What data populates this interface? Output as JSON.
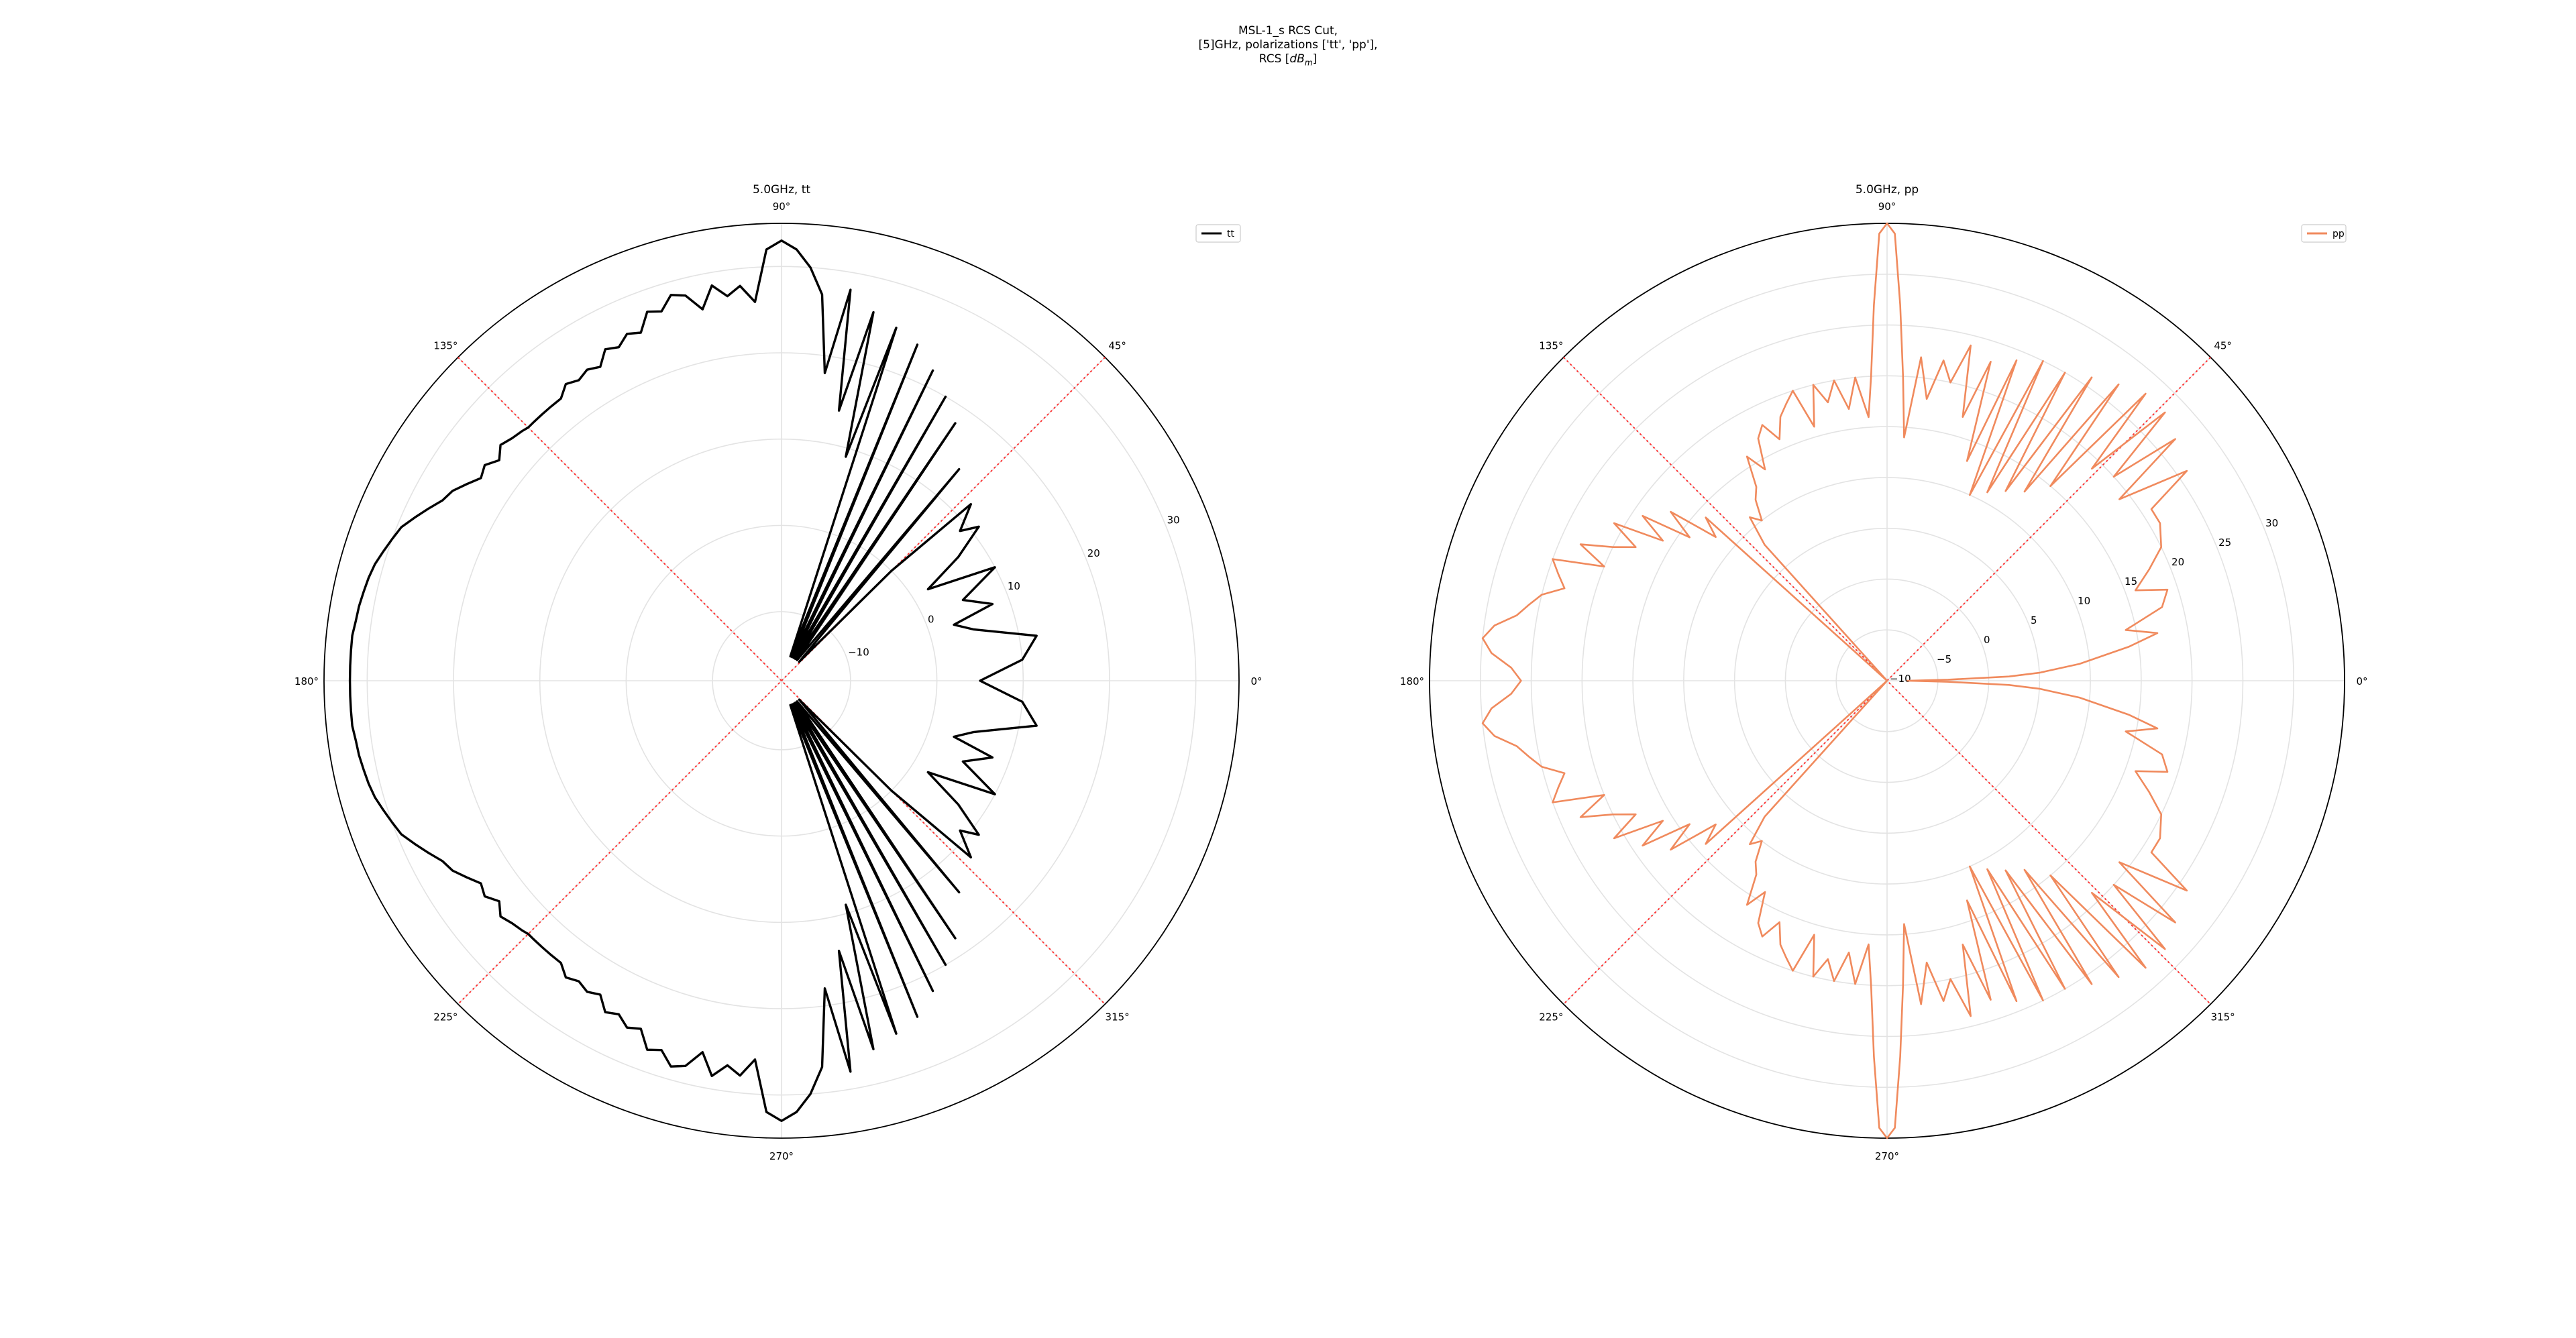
{
  "figure": {
    "title_line1": "MSL-1_s RCS Cut,",
    "title_line2": "[5]GHz, polarizations ['tt', 'pp'],",
    "title_line3": "RCS [dBm]",
    "title_line3_main": "RCS [",
    "title_line3_d": "dB",
    "title_line3_sub": "m",
    "title_line3_end": "]"
  },
  "chart_data": [
    {
      "type": "polar-line",
      "title": "5.0GHz, tt",
      "angle_ticks": [
        "0°",
        "45°",
        "90°",
        "135°",
        "180°",
        "225°",
        "270°",
        "315°"
      ],
      "radial_tick_labels": [
        "−10",
        "0",
        "10",
        "20",
        "30"
      ],
      "radial_ticks": [
        -10,
        0,
        10,
        20,
        30
      ],
      "rlim": [
        -18,
        35
      ],
      "rlabel_angle_deg": 22.5,
      "grid": true,
      "legend": "top-right",
      "cut_lines_deg": [
        45,
        135
      ],
      "series": [
        {
          "name": "tt",
          "color": "#000000",
          "angle_deg": [
            0,
            5,
            10,
            15,
            18,
            20,
            24,
            28,
            32,
            35,
            38,
            40,
            43,
            45,
            47,
            50,
            53,
            56,
            58,
            60,
            62,
            64,
            66,
            68,
            70,
            72,
            74,
            76,
            78,
            80,
            82,
            84,
            86,
            88,
            90,
            92,
            94,
            96,
            98,
            100,
            102,
            104,
            106,
            108,
            110,
            112,
            114,
            116,
            118,
            120,
            122,
            124,
            126,
            128,
            130,
            132,
            134,
            135,
            136,
            138,
            140,
            142,
            144,
            146,
            148,
            150,
            152,
            154,
            156,
            158,
            160,
            162,
            164,
            166,
            168,
            170,
            172,
            174,
            176,
            178,
            180
          ],
          "values": [
            5,
            10,
            12,
            5,
            3,
            8,
            5,
            10,
            2,
            7,
            11,
            9,
            12,
            0,
            -15,
            14,
            -15,
            18,
            -15,
            20,
            -15,
            22,
            -15,
            24,
            -15,
            25,
            9,
            26,
            14,
            28,
            18,
            27,
            30,
            32,
            33,
            32,
            26,
            28,
            27,
            28.5,
            26,
            28,
            28.5,
            27,
            27.5,
            25.5,
            26,
            25,
            25.5,
            24,
            24.5,
            24,
            24.5,
            23.5,
            23.5,
            23.5,
            23.5,
            23.5,
            23.7,
            24,
            24.5,
            23.5,
            24.5,
            24,
            25,
            26,
            26.5,
            27.5,
            28.5,
            29.5,
            30,
            30.5,
            31,
            31.3,
            31.5,
            31.7,
            31.8,
            32,
            32,
            32,
            32
          ]
        }
      ]
    },
    {
      "type": "polar-line",
      "title": "5.0GHz, pp",
      "angle_ticks": [
        "0°",
        "45°",
        "90°",
        "135°",
        "180°",
        "225°",
        "270°",
        "315°"
      ],
      "radial_tick_labels": [
        "−10",
        "−5",
        "0",
        "5",
        "10",
        "15",
        "20",
        "25",
        "30"
      ],
      "radial_ticks": [
        -10,
        -5,
        0,
        5,
        10,
        15,
        20,
        25,
        30
      ],
      "rlim": [
        -10,
        35
      ],
      "rlabel_angle_deg": 22.5,
      "grid": true,
      "legend": "top-right",
      "cut_lines_deg": [
        45,
        135
      ],
      "series": [
        {
          "name": "pp",
          "color": "#f08a5d",
          "angle_deg": [
            0,
            1,
            2,
            3,
            5,
            8,
            10,
            12,
            15,
            18,
            20,
            23,
            26,
            30,
            33,
            35,
            38,
            40,
            42,
            44,
            46,
            48,
            50,
            52,
            54,
            56,
            58,
            60,
            62,
            64,
            66,
            68,
            70,
            72,
            74,
            76,
            78,
            80,
            82,
            84,
            86,
            87,
            88,
            89,
            90,
            91,
            92,
            93,
            94,
            96,
            98,
            100,
            102,
            104,
            106,
            108,
            110,
            112,
            114,
            116,
            118,
            120,
            122,
            124,
            126,
            128,
            130,
            132,
            134,
            135,
            136,
            138,
            140,
            142,
            144,
            146,
            148,
            150,
            152,
            154,
            156,
            158,
            160,
            162,
            164,
            166,
            168,
            170,
            172,
            174,
            176,
            178,
            180
          ],
          "values": [
            -8,
            -4,
            2,
            5,
            9,
            14,
            17,
            14,
            18,
            19,
            16,
            18,
            20,
            21,
            21,
            26,
            19,
            27,
            20,
            28,
            19,
            28,
            15,
            27,
            13,
            26,
            12,
            25,
            11,
            25,
            10,
            24,
            13,
            23,
            17,
            24,
            20,
            22,
            18,
            22,
            14,
            20,
            27,
            34,
            35,
            34,
            27,
            20,
            16,
            20,
            17,
            20,
            18,
            20,
            16,
            20,
            19,
            18,
            16,
            18,
            17,
            14,
            16,
            13,
            12,
            10,
            11,
            8,
            -10,
            -10,
            -10,
            14,
            12,
            17,
            14,
            19,
            16,
            21,
            18,
            20,
            23,
            20,
            25,
            24,
            23,
            25,
            26,
            27,
            29,
            30,
            29,
            27,
            26
          ]
        }
      ]
    }
  ]
}
